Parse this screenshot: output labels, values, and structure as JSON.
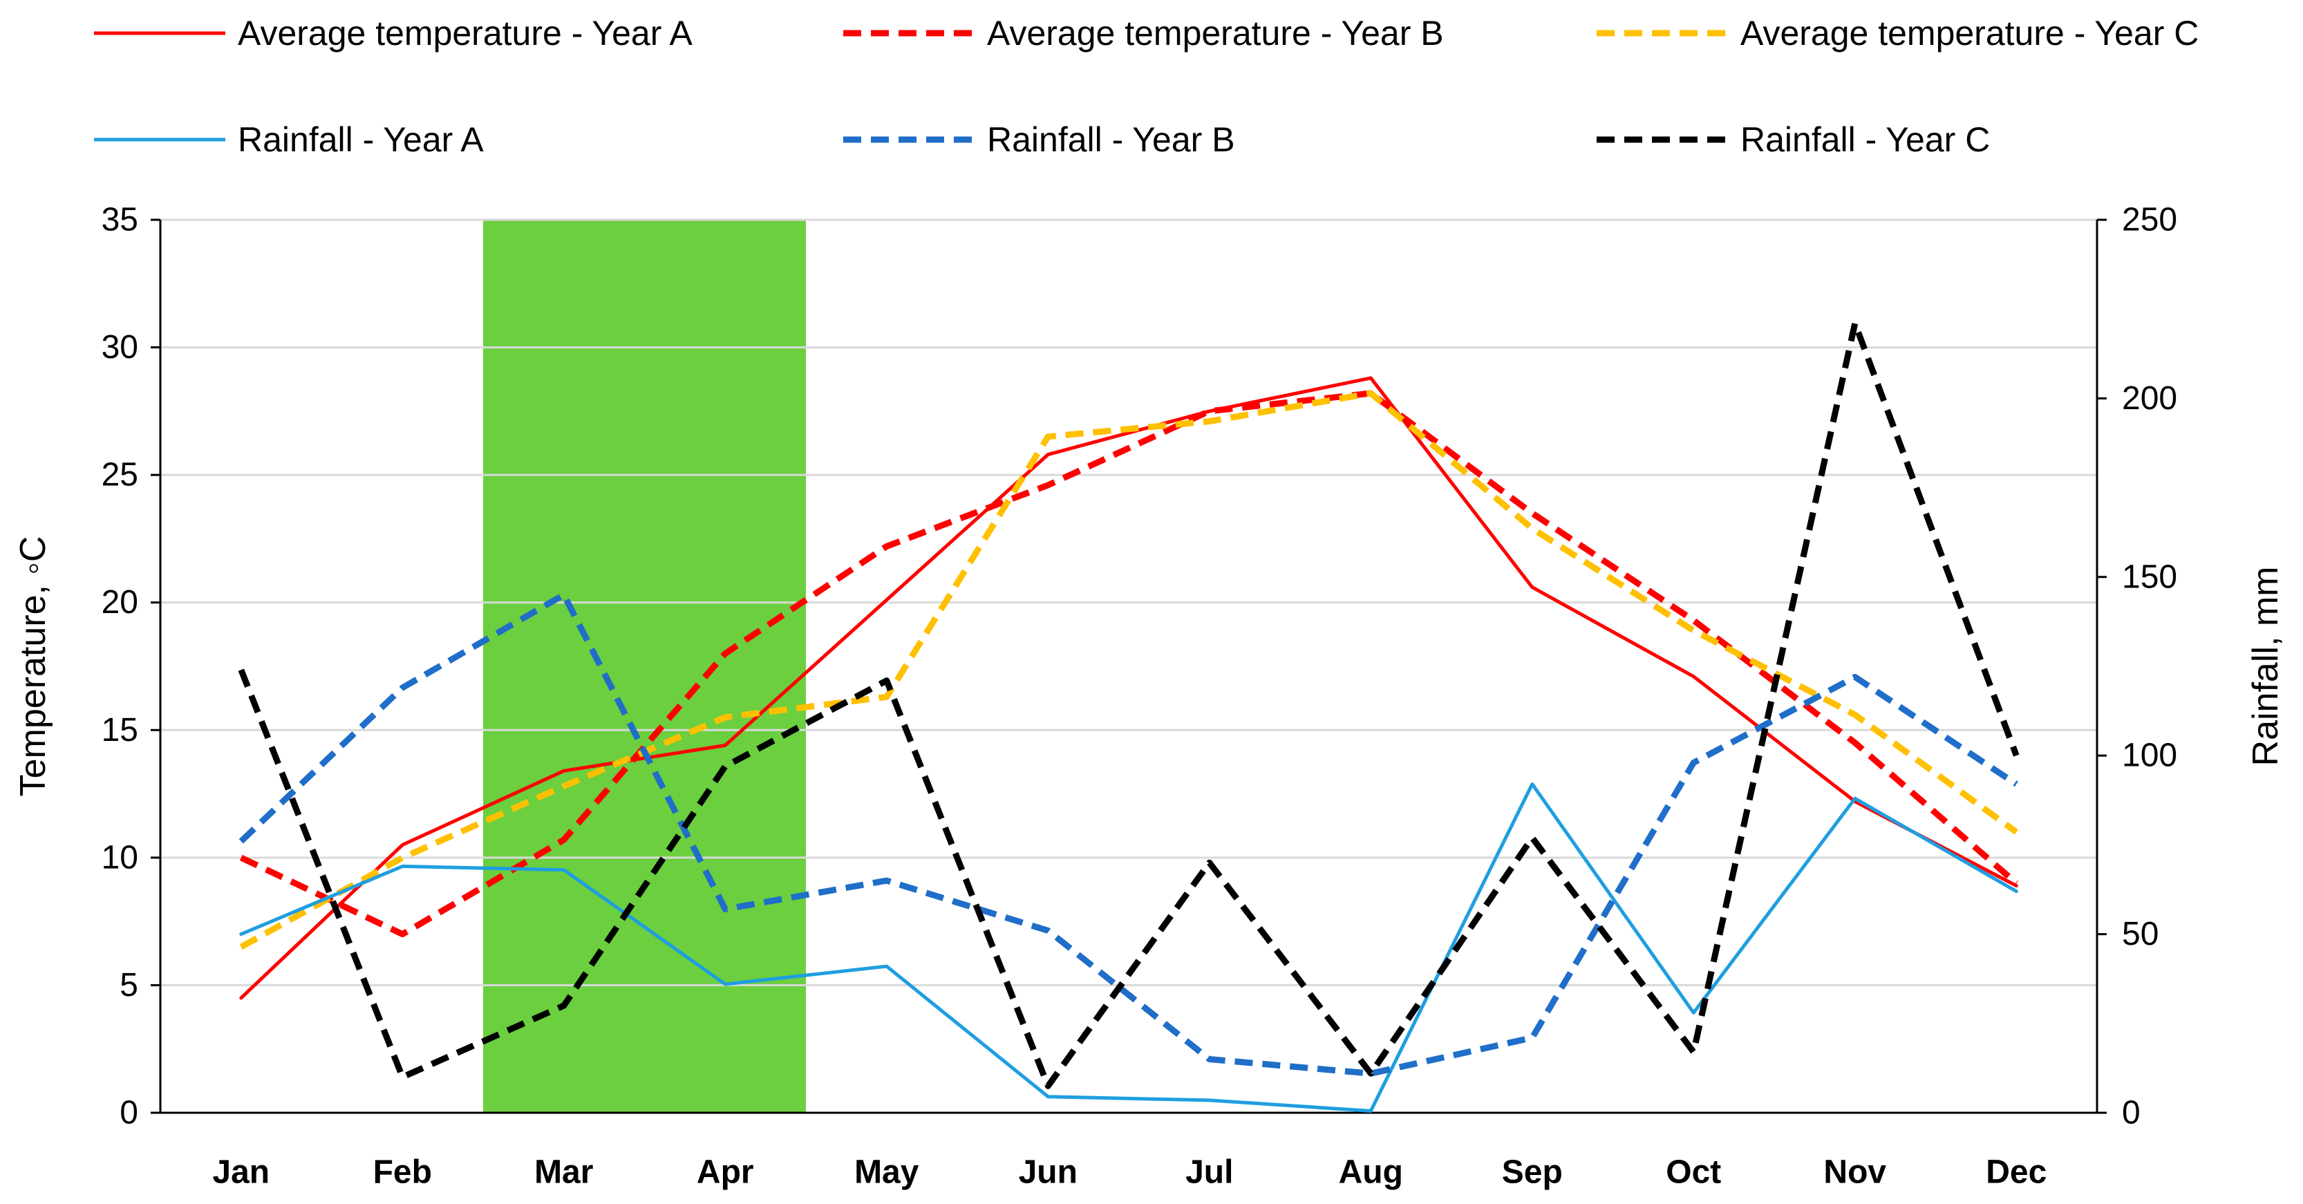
{
  "chart_data": {
    "type": "line",
    "categories": [
      "Jan",
      "Feb",
      "Mar",
      "Apr",
      "May",
      "Jun",
      "Jul",
      "Aug",
      "Sep",
      "Oct",
      "Nov",
      "Dec"
    ],
    "y_left": {
      "label": "Temperature, ◦C",
      "range": [
        0,
        35
      ],
      "ticks": [
        0,
        5,
        10,
        15,
        20,
        25,
        30,
        35
      ]
    },
    "y_right": {
      "label": "Rainfall, mm",
      "range": [
        0,
        250
      ],
      "ticks": [
        0,
        50,
        100,
        150,
        200,
        250
      ]
    },
    "highlight": {
      "from_month": "Mar",
      "to_month": "Apr",
      "color": "#6bcf3f"
    },
    "grid": "horizontal",
    "legend_position": "top",
    "series": [
      {
        "name": "Average temperature - Year A",
        "axis": "left",
        "color": "#ff0000",
        "dash": "solid",
        "values": [
          4.5,
          10.5,
          13.4,
          14.4,
          20.1,
          25.8,
          27.5,
          28.8,
          20.6,
          17.1,
          12.2,
          8.9
        ]
      },
      {
        "name": "Average temperature - Year B",
        "axis": "left",
        "color": "#ff0000",
        "dash": "dashed",
        "values": [
          10.0,
          7.0,
          10.7,
          18.0,
          22.2,
          24.6,
          27.5,
          28.2,
          23.5,
          19.3,
          14.5,
          9.0
        ]
      },
      {
        "name": "Average temperature - Year C",
        "axis": "left",
        "color": "#ffc000",
        "dash": "dashed",
        "values": [
          6.5,
          10.0,
          12.8,
          15.5,
          16.3,
          26.5,
          27.1,
          28.2,
          22.9,
          18.9,
          15.6,
          11.0
        ]
      },
      {
        "name": "Rainfall - Year A",
        "axis": "right",
        "color": "#1f9ee0",
        "dash": "solid",
        "values": [
          50,
          69,
          68,
          36,
          41,
          4.5,
          3.5,
          0.5,
          92,
          28,
          88,
          62
        ]
      },
      {
        "name": "Rainfall - Year B",
        "axis": "right",
        "color": "#1f6ec9",
        "dash": "dashed",
        "values": [
          76,
          119,
          145,
          57,
          65,
          51,
          15,
          11,
          21,
          98,
          122,
          92
        ]
      },
      {
        "name": "Rainfall - Year C",
        "axis": "right",
        "color": "#000000",
        "dash": "dashed",
        "values": [
          124,
          10,
          30,
          97,
          121,
          7.5,
          70,
          11,
          77,
          17,
          221,
          100
        ]
      }
    ]
  }
}
